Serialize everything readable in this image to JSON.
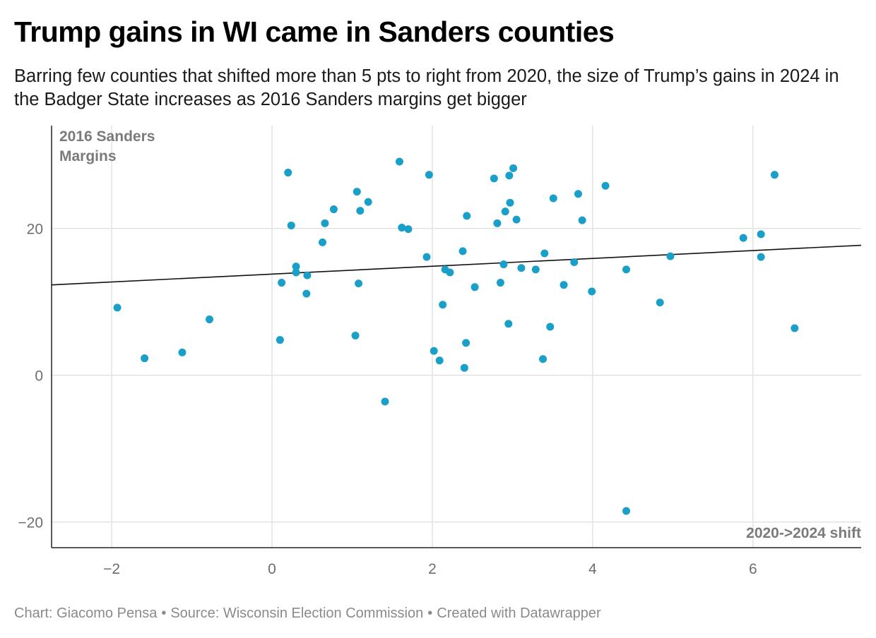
{
  "header": {
    "title": "Trump gains in WI came in Sanders counties",
    "subtitle": "Barring few counties that shifted more than 5 pts to right from 2020, the size of Trump’s gains in 2024 in the Badger State increases as 2016 Sanders margins get bigger"
  },
  "footer": {
    "chart_by": "Chart: Giacomo Pensa",
    "source": "Source: Wisconsin Election Commission",
    "created_with": "Created with Datawrapper",
    "separator": "•"
  },
  "colors": {
    "points": "#1a9fc9",
    "trendline": "#111111",
    "grid": "#e3e3e3",
    "axis": "#222222"
  },
  "chart_data": {
    "type": "scatter",
    "title": "Trump gains in WI came in Sanders counties",
    "ylabel_lines": [
      "2016 Sanders",
      "Margins"
    ],
    "xlabel": "2020->2024 shift",
    "xlim": [
      -2.75,
      7.35
    ],
    "ylim": [
      -23.5,
      34
    ],
    "x_ticks": [
      -2,
      0,
      2,
      4,
      6
    ],
    "x_tick_labels": [
      "−2",
      "0",
      "2",
      "4",
      "6"
    ],
    "y_ticks": [
      -20,
      0,
      20
    ],
    "y_tick_labels": [
      "−20",
      "0",
      "20"
    ],
    "grid": true,
    "trendline": {
      "x": [
        -2.75,
        7.35
      ],
      "y": [
        12.3,
        17.7
      ]
    },
    "points": [
      {
        "x": -1.93,
        "y": 9.2
      },
      {
        "x": -1.59,
        "y": 2.3
      },
      {
        "x": -1.12,
        "y": 3.1
      },
      {
        "x": -0.78,
        "y": 7.6
      },
      {
        "x": 0.1,
        "y": 4.8
      },
      {
        "x": 0.12,
        "y": 12.6
      },
      {
        "x": 0.2,
        "y": 27.6
      },
      {
        "x": 0.24,
        "y": 20.4
      },
      {
        "x": 0.3,
        "y": 14.8
      },
      {
        "x": 0.3,
        "y": 14.0
      },
      {
        "x": 0.43,
        "y": 11.1
      },
      {
        "x": 0.44,
        "y": 13.6
      },
      {
        "x": 0.63,
        "y": 18.1
      },
      {
        "x": 0.66,
        "y": 20.7
      },
      {
        "x": 0.77,
        "y": 22.6
      },
      {
        "x": 1.04,
        "y": 5.4
      },
      {
        "x": 1.06,
        "y": 25.0
      },
      {
        "x": 1.08,
        "y": 12.5
      },
      {
        "x": 1.1,
        "y": 22.4
      },
      {
        "x": 1.2,
        "y": 23.6
      },
      {
        "x": 1.41,
        "y": -3.6
      },
      {
        "x": 1.59,
        "y": 29.1
      },
      {
        "x": 1.62,
        "y": 20.1
      },
      {
        "x": 1.7,
        "y": 19.9
      },
      {
        "x": 1.93,
        "y": 16.1
      },
      {
        "x": 1.96,
        "y": 27.3
      },
      {
        "x": 2.02,
        "y": 3.3
      },
      {
        "x": 2.09,
        "y": 2.0
      },
      {
        "x": 2.13,
        "y": 9.6
      },
      {
        "x": 2.16,
        "y": 14.4
      },
      {
        "x": 2.22,
        "y": 14.0
      },
      {
        "x": 2.38,
        "y": 16.9
      },
      {
        "x": 2.4,
        "y": 1.0
      },
      {
        "x": 2.42,
        "y": 4.4
      },
      {
        "x": 2.43,
        "y": 21.7
      },
      {
        "x": 2.53,
        "y": 12.0
      },
      {
        "x": 2.77,
        "y": 26.8
      },
      {
        "x": 2.81,
        "y": 20.7
      },
      {
        "x": 2.85,
        "y": 12.6
      },
      {
        "x": 2.89,
        "y": 15.1
      },
      {
        "x": 2.91,
        "y": 22.3
      },
      {
        "x": 2.95,
        "y": 7.0
      },
      {
        "x": 2.96,
        "y": 27.2
      },
      {
        "x": 2.97,
        "y": 23.5
      },
      {
        "x": 3.01,
        "y": 28.2
      },
      {
        "x": 3.05,
        "y": 21.2
      },
      {
        "x": 3.11,
        "y": 14.6
      },
      {
        "x": 3.29,
        "y": 14.4
      },
      {
        "x": 3.38,
        "y": 2.2
      },
      {
        "x": 3.4,
        "y": 16.6
      },
      {
        "x": 3.47,
        "y": 6.6
      },
      {
        "x": 3.51,
        "y": 24.1
      },
      {
        "x": 3.64,
        "y": 12.3
      },
      {
        "x": 3.77,
        "y": 15.4
      },
      {
        "x": 3.82,
        "y": 24.7
      },
      {
        "x": 3.87,
        "y": 21.1
      },
      {
        "x": 3.99,
        "y": 11.4
      },
      {
        "x": 4.16,
        "y": 25.8
      },
      {
        "x": 4.42,
        "y": 14.4
      },
      {
        "x": 4.42,
        "y": -18.5
      },
      {
        "x": 4.84,
        "y": 9.9
      },
      {
        "x": 4.97,
        "y": 16.2
      },
      {
        "x": 5.88,
        "y": 18.7
      },
      {
        "x": 6.1,
        "y": 19.2
      },
      {
        "x": 6.1,
        "y": 16.1
      },
      {
        "x": 6.27,
        "y": 27.3
      },
      {
        "x": 6.52,
        "y": 6.4
      }
    ]
  }
}
